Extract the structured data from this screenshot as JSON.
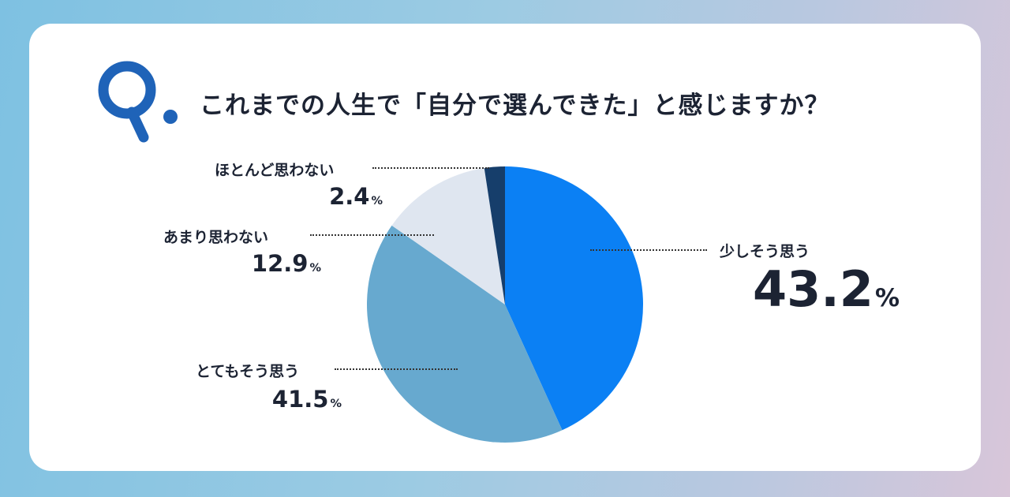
{
  "title": "これまでの人生で「自分で選んできた」と感じますか？",
  "logo": "Q.",
  "colors": {
    "brand": "#1f63b8",
    "text": "#1c2333"
  },
  "chart_data": {
    "type": "pie",
    "start": "12 o'clock, clockwise",
    "unit": "%",
    "slices": [
      {
        "label": "少しそう思う",
        "value": 43.2,
        "value_text": "43.2",
        "color": "#0b80f4"
      },
      {
        "label": "とてもそう思う",
        "value": 41.5,
        "value_text": "41.5",
        "color": "#67a9cf"
      },
      {
        "label": "あまり思わない",
        "value": 12.9,
        "value_text": "12.9",
        "color": "#dfe6f0"
      },
      {
        "label": "ほとんど思わない",
        "value": 2.4,
        "value_text": "2.4",
        "color": "#163e6b"
      }
    ]
  }
}
